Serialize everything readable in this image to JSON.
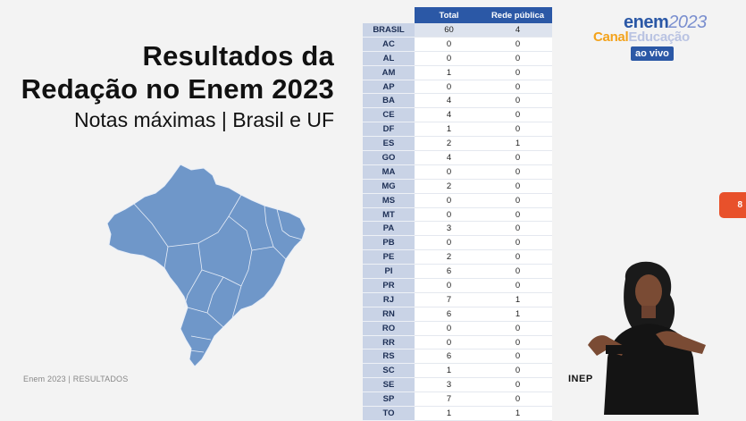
{
  "slide": {
    "title_line1": "Resultados da",
    "title_line2": "Redação no Enem 2023",
    "subtitle": "Notas máximas | Brasil e UF",
    "footer": "Enem 2023 | RESULTADOS"
  },
  "table": {
    "headers": [
      "Total",
      "Rede pública"
    ],
    "rows": [
      {
        "uf": "BRASIL",
        "total": "60",
        "publica": "4"
      },
      {
        "uf": "AC",
        "total": "0",
        "publica": "0"
      },
      {
        "uf": "AL",
        "total": "0",
        "publica": "0"
      },
      {
        "uf": "AM",
        "total": "1",
        "publica": "0"
      },
      {
        "uf": "AP",
        "total": "0",
        "publica": "0"
      },
      {
        "uf": "BA",
        "total": "4",
        "publica": "0"
      },
      {
        "uf": "CE",
        "total": "4",
        "publica": "0"
      },
      {
        "uf": "DF",
        "total": "1",
        "publica": "0"
      },
      {
        "uf": "ES",
        "total": "2",
        "publica": "1"
      },
      {
        "uf": "GO",
        "total": "4",
        "publica": "0"
      },
      {
        "uf": "MA",
        "total": "0",
        "publica": "0"
      },
      {
        "uf": "MG",
        "total": "2",
        "publica": "0"
      },
      {
        "uf": "MS",
        "total": "0",
        "publica": "0"
      },
      {
        "uf": "MT",
        "total": "0",
        "publica": "0"
      },
      {
        "uf": "PA",
        "total": "3",
        "publica": "0"
      },
      {
        "uf": "PB",
        "total": "0",
        "publica": "0"
      },
      {
        "uf": "PE",
        "total": "2",
        "publica": "0"
      },
      {
        "uf": "PI",
        "total": "6",
        "publica": "0"
      },
      {
        "uf": "PR",
        "total": "0",
        "publica": "0"
      },
      {
        "uf": "RJ",
        "total": "7",
        "publica": "1"
      },
      {
        "uf": "RN",
        "total": "6",
        "publica": "1"
      },
      {
        "uf": "RO",
        "total": "0",
        "publica": "0"
      },
      {
        "uf": "RR",
        "total": "0",
        "publica": "0"
      },
      {
        "uf": "RS",
        "total": "6",
        "publica": "0"
      },
      {
        "uf": "SC",
        "total": "1",
        "publica": "0"
      },
      {
        "uf": "SE",
        "total": "3",
        "publica": "0"
      },
      {
        "uf": "SP",
        "total": "7",
        "publica": "0"
      },
      {
        "uf": "TO",
        "total": "1",
        "publica": "1"
      }
    ]
  },
  "broadcast": {
    "logo_enem": "enem",
    "logo_year": "2023",
    "logo_canal": "Canal",
    "logo_educacao": "Educação",
    "live_label": "ao vivo",
    "side_tab": "8",
    "inep_label": "INEP"
  },
  "colors": {
    "header_blue": "#2b58a6",
    "map_blue": "#6f97c9",
    "accent_orange": "#e8512b"
  },
  "icons": [
    "brazil-map",
    "sign-language-interpreter"
  ]
}
